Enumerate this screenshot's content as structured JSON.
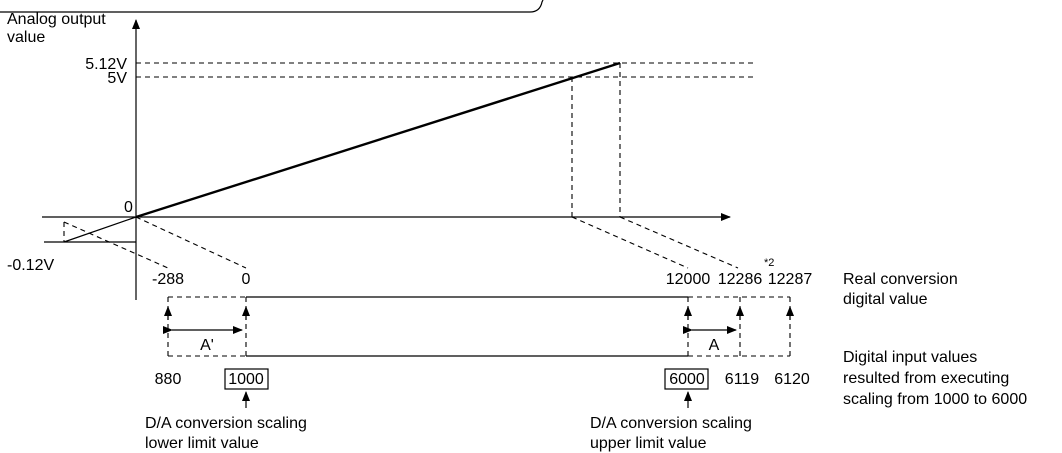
{
  "y_axis": {
    "title_line1": "Analog output",
    "title_line2": "value",
    "tick_512": "5.12V",
    "tick_5": "5V",
    "tick_0": "0",
    "tick_neg": "-0.12V"
  },
  "real_values": {
    "v_neg288": "-288",
    "v_0": "0",
    "v_12000": "12000",
    "v_12286": "12286",
    "v_12287": "12287",
    "note": "*2",
    "label_line1": "Real conversion",
    "label_line2": "digital value"
  },
  "input_values": {
    "v_880": "880",
    "v_1000": "1000",
    "v_6000": "6000",
    "v_6119": "6119",
    "v_6120": "6120",
    "label_line1": "Digital input values",
    "label_line2": "resulted from executing",
    "label_line3": "scaling from 1000 to 6000"
  },
  "ranges": {
    "a_prime": "A'",
    "a": "A"
  },
  "notes": {
    "lower_line1": "D/A conversion scaling",
    "lower_line2": "lower limit value",
    "upper_line1": "D/A conversion scaling",
    "upper_line2": "upper limit value"
  }
}
